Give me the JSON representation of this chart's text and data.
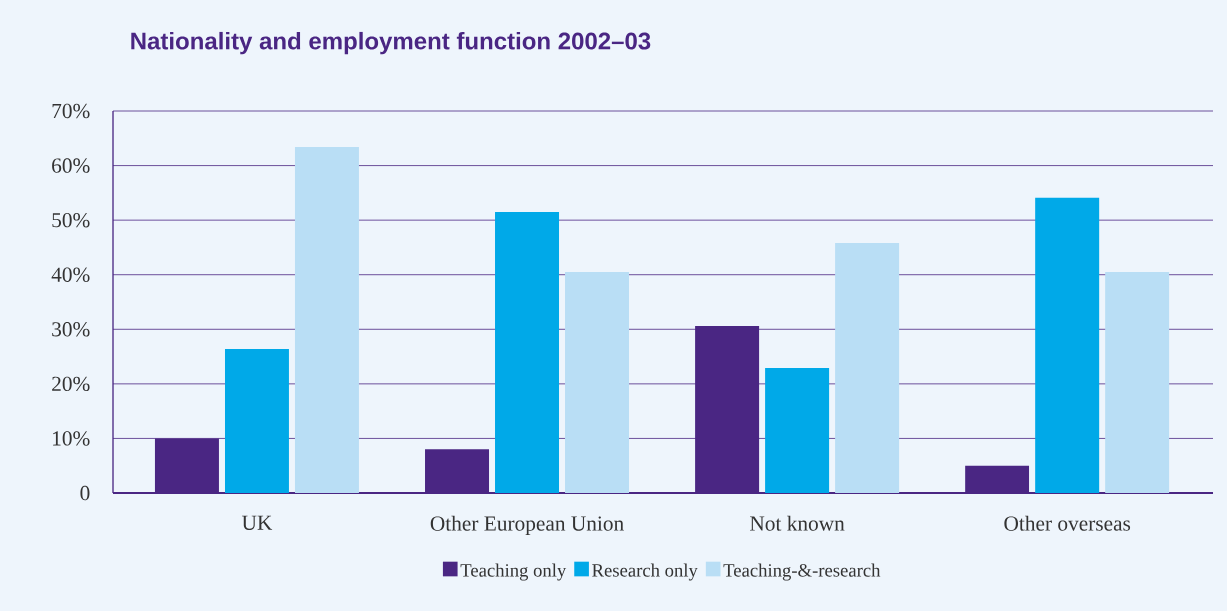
{
  "chart_data": {
    "type": "bar",
    "title": "Nationality and employment function 2002–03",
    "categories": [
      "UK",
      "Other European Union",
      "Not known",
      "Other overseas"
    ],
    "series": [
      {
        "name": "Teaching only",
        "color": "#4a2683",
        "values": [
          10,
          8,
          30.6,
          5
        ]
      },
      {
        "name": "Research only",
        "color": "#00a9e8",
        "values": [
          26.4,
          51.5,
          22.9,
          54.1
        ]
      },
      {
        "name": "Teaching-&-research",
        "color": "#b9def5",
        "values": [
          63.4,
          40.5,
          45.8,
          40.5
        ]
      }
    ],
    "ylim": [
      0,
      70
    ],
    "yticks": [
      0,
      {
        "value": 10,
        "label": "10%"
      },
      {
        "value": 20,
        "label": "20%"
      },
      {
        "value": 30,
        "label": "30%"
      },
      {
        "value": 40,
        "label": "40%"
      },
      {
        "value": 50,
        "label": "50%"
      },
      {
        "value": 60,
        "label": "60%"
      },
      {
        "value": 70,
        "label": "70%"
      }
    ],
    "grid": "y",
    "legend": "bottom"
  }
}
